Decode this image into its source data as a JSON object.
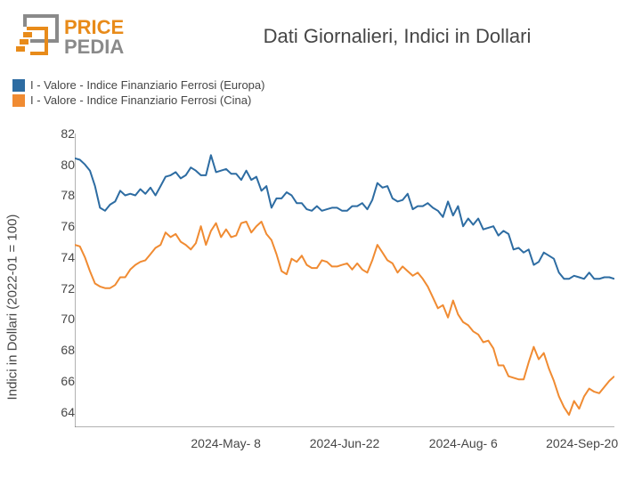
{
  "logo": {
    "text_top": "PRICE",
    "text_bottom": "PEDIA",
    "accent_color": "#e88b1a",
    "gray_color": "#8a8a8a"
  },
  "title": "Dati Giornalieri, Indici in Dollari",
  "legend": [
    {
      "label": "I - Valore - Indice Finanziario Ferrosi (Europa)",
      "color": "#2d6ca2"
    },
    {
      "label": "I - Valore - Indice Finanziario Ferrosi (Cina)",
      "color": "#f08b32"
    }
  ],
  "chart": {
    "type": "line",
    "ylabel": "Indici in Dollari (2022-01 = 100)",
    "ylim": [
      63,
      82
    ],
    "yticks": [
      64,
      66,
      68,
      70,
      72,
      74,
      76,
      78,
      80,
      82
    ],
    "xticks": [
      {
        "pos": 0.28,
        "label": "2024-May- 8"
      },
      {
        "pos": 0.5,
        "label": "2024-Jun-22"
      },
      {
        "pos": 0.72,
        "label": "2024-Aug- 6"
      },
      {
        "pos": 0.94,
        "label": "2024-Sep-20"
      }
    ],
    "axis_color": "#666666",
    "tick_color": "#464646",
    "background_color": "#ffffff",
    "line_width": 2,
    "series": [
      {
        "name": "europa",
        "color": "#2d6ca2",
        "values": [
          80.4,
          80.3,
          80.0,
          79.6,
          78.6,
          77.2,
          77.0,
          77.4,
          77.6,
          78.3,
          78.0,
          78.1,
          78.0,
          78.4,
          78.1,
          78.5,
          78.0,
          78.6,
          79.2,
          79.3,
          79.5,
          79.1,
          79.3,
          79.8,
          79.6,
          79.3,
          79.3,
          80.6,
          79.5,
          79.6,
          79.7,
          79.4,
          79.4,
          79.0,
          79.6,
          79.0,
          79.2,
          78.3,
          78.6,
          77.2,
          77.8,
          77.8,
          78.2,
          78.0,
          77.5,
          77.5,
          77.1,
          77.0,
          77.3,
          77.0,
          77.1,
          77.2,
          77.2,
          77.0,
          77.0,
          77.3,
          77.3,
          77.5,
          77.1,
          77.7,
          78.8,
          78.5,
          78.6,
          77.8,
          77.6,
          77.7,
          78.1,
          77.1,
          77.3,
          77.3,
          77.5,
          77.2,
          77.0,
          76.6,
          77.6,
          76.7,
          77.3,
          76.0,
          76.5,
          76.1,
          76.5,
          75.8,
          75.9,
          76.0,
          75.4,
          75.7,
          75.5,
          74.5,
          74.6,
          74.3,
          74.5,
          73.5,
          73.7,
          74.3,
          74.1,
          73.9,
          73.0,
          72.6,
          72.6,
          72.8,
          72.7,
          72.6,
          73.0,
          72.6,
          72.6,
          72.7,
          72.7,
          72.6
        ]
      },
      {
        "name": "cina",
        "color": "#f08b32",
        "values": [
          74.8,
          74.7,
          74.0,
          73.1,
          72.3,
          72.1,
          72.0,
          72.0,
          72.2,
          72.7,
          72.7,
          73.2,
          73.5,
          73.7,
          73.8,
          74.2,
          74.6,
          74.8,
          75.6,
          75.3,
          75.5,
          75.0,
          74.8,
          74.5,
          74.9,
          76.0,
          74.8,
          75.7,
          76.2,
          75.3,
          75.8,
          75.3,
          75.4,
          76.2,
          76.3,
          75.6,
          76.0,
          76.3,
          75.5,
          75.1,
          74.2,
          73.1,
          72.9,
          73.9,
          73.7,
          74.1,
          73.5,
          73.3,
          73.3,
          73.8,
          73.7,
          73.4,
          73.4,
          73.5,
          73.6,
          73.2,
          73.6,
          73.2,
          73.0,
          73.8,
          74.8,
          74.3,
          73.8,
          73.6,
          73.0,
          73.4,
          73.1,
          72.8,
          73.0,
          72.6,
          72.1,
          71.4,
          70.7,
          70.9,
          70.1,
          71.2,
          70.3,
          69.8,
          69.6,
          69.2,
          69.0,
          68.5,
          68.6,
          68.1,
          67.0,
          67.0,
          66.3,
          66.2,
          66.1,
          66.1,
          67.2,
          68.2,
          67.4,
          67.8,
          66.8,
          66.0,
          65.0,
          64.3,
          63.8,
          64.7,
          64.2,
          65.0,
          65.5,
          65.3,
          65.2,
          65.6,
          66.0,
          66.3
        ]
      }
    ]
  }
}
